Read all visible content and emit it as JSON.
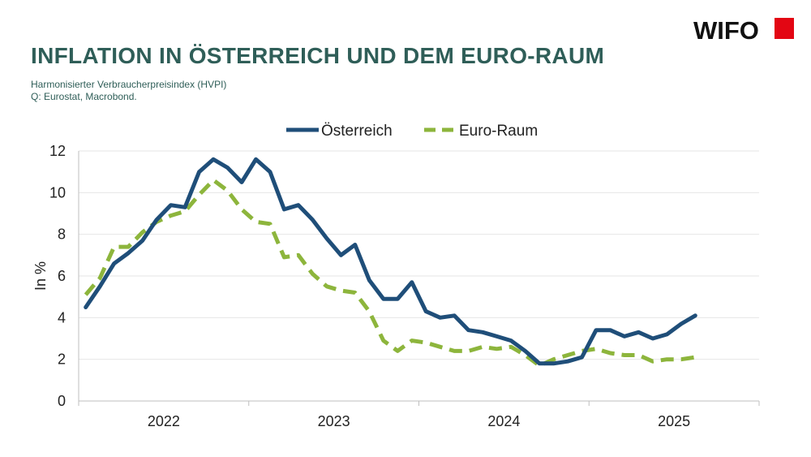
{
  "header": {
    "title": "INFLATION IN ÖSTERREICH UND DEM EURO-RAUM",
    "subtitle_line1": "Harmonisierter Verbraucherpreisindex (HVPI)",
    "subtitle_line2": "Q: Eurostat, Macrobond."
  },
  "logo": {
    "text": "WIFO",
    "accent_color": "#e30613"
  },
  "colors": {
    "title": "#2f5e58",
    "oesterreich": "#1f4e79",
    "euro_raum": "#8db53c",
    "grid": "#e6e6e6",
    "axis": "#bfbfbf"
  },
  "chart_data": {
    "type": "line",
    "title": "",
    "xlabel": "",
    "ylabel": "In %",
    "ylim": [
      0,
      12
    ],
    "yticks": [
      0,
      2,
      4,
      6,
      8,
      10,
      12
    ],
    "year_labels": [
      "2022",
      "2023",
      "2024",
      "2025"
    ],
    "x_range_months": [
      -0.5,
      47.5
    ],
    "year_boundaries": [
      -0.5,
      11.5,
      23.5,
      35.5,
      47.5
    ],
    "grid": true,
    "legend_position": "top",
    "series": [
      {
        "name": "Österreich",
        "style": "solid",
        "values": [
          4.5,
          5.5,
          6.6,
          7.1,
          7.7,
          8.7,
          9.4,
          9.3,
          11.0,
          11.6,
          11.2,
          10.5,
          11.6,
          11.0,
          9.2,
          9.4,
          8.7,
          7.8,
          7.0,
          7.5,
          5.8,
          4.9,
          4.9,
          5.7,
          4.3,
          4.0,
          4.1,
          3.4,
          3.3,
          3.1,
          2.9,
          2.4,
          1.8,
          1.8,
          1.9,
          2.1,
          3.4,
          3.4,
          3.1,
          3.3,
          3.0,
          3.2,
          3.7,
          4.1
        ]
      },
      {
        "name": "Euro-Raum",
        "style": "dashed",
        "values": [
          5.1,
          5.9,
          7.4,
          7.4,
          8.1,
          8.6,
          8.9,
          9.1,
          9.9,
          10.6,
          10.1,
          9.2,
          8.6,
          8.5,
          6.9,
          7.0,
          6.1,
          5.5,
          5.3,
          5.2,
          4.3,
          2.9,
          2.4,
          2.9,
          2.8,
          2.6,
          2.4,
          2.4,
          2.6,
          2.5,
          2.6,
          2.2,
          1.7,
          2.0,
          2.2,
          2.4,
          2.5,
          2.3,
          2.2,
          2.2,
          1.9,
          2.0,
          2.0,
          2.1
        ]
      }
    ]
  }
}
